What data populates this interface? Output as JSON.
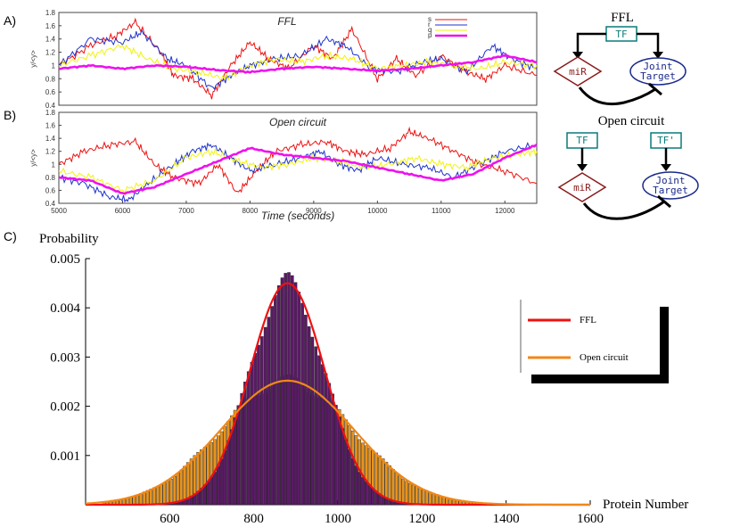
{
  "panels": {
    "a": "A)",
    "b": "B)",
    "c": "C)"
  },
  "chart_data": [
    {
      "type": "line",
      "panel_title": "FFL",
      "ylabel": "y/<y>",
      "xlim": [
        5000,
        12500
      ],
      "ylim": [
        0.4,
        1.8
      ],
      "yticks": [
        "0.4",
        "0.6",
        "0.8",
        "1",
        "1.2",
        "1.4",
        "1.6",
        "1.8"
      ],
      "legend": [
        "s",
        "r",
        "q",
        "p"
      ],
      "series": [
        {
          "color": "#ee1111",
          "x": [
            5000,
            5500,
            5900,
            6200,
            6600,
            6800,
            7100,
            7400,
            7700,
            8000,
            8300,
            8600,
            9000,
            9300,
            9600,
            10000,
            10300,
            10600,
            11000,
            11400,
            11700,
            12000,
            12500
          ],
          "y": [
            1.0,
            1.3,
            1.45,
            1.65,
            1.2,
            0.85,
            0.8,
            0.55,
            1.0,
            1.35,
            1.1,
            0.95,
            1.3,
            1.1,
            1.55,
            0.8,
            1.1,
            0.85,
            1.15,
            0.9,
            0.8,
            1.0,
            0.85
          ]
        },
        {
          "color": "#1f33cc",
          "x": [
            5000,
            5500,
            6000,
            6300,
            6700,
            7000,
            7400,
            7700,
            8000,
            8400,
            8800,
            9200,
            9500,
            9900,
            10300,
            10700,
            11000,
            11400,
            11800,
            12100,
            12500
          ],
          "y": [
            1.0,
            1.4,
            1.35,
            1.5,
            1.1,
            1.0,
            0.65,
            0.85,
            1.0,
            1.1,
            1.15,
            1.4,
            1.3,
            0.95,
            0.9,
            1.05,
            1.1,
            0.9,
            1.3,
            1.1,
            0.95
          ]
        },
        {
          "color": "#f2f20d",
          "x": [
            5000,
            5500,
            6000,
            6400,
            6800,
            7200,
            7600,
            8000,
            8400,
            8800,
            9200,
            9600,
            10000,
            10400,
            10800,
            11200,
            11600,
            12000,
            12500
          ],
          "y": [
            1.0,
            1.15,
            1.3,
            1.1,
            0.95,
            0.9,
            0.8,
            1.0,
            1.1,
            1.05,
            1.15,
            1.1,
            0.95,
            1.0,
            1.05,
            1.0,
            0.95,
            1.05,
            1.0
          ]
        },
        {
          "color": "#ee11ee",
          "x": [
            5000,
            5500,
            6000,
            6500,
            7000,
            7500,
            8000,
            8500,
            9000,
            9500,
            10000,
            10500,
            11000,
            11500,
            12000,
            12500
          ],
          "y": [
            0.95,
            1.0,
            0.95,
            1.0,
            0.98,
            0.93,
            0.9,
            0.95,
            0.98,
            0.95,
            0.92,
            0.95,
            1.0,
            1.05,
            1.15,
            1.05
          ]
        }
      ]
    },
    {
      "type": "line",
      "panel_title": "Open circuit",
      "xlabel": "Time (seconds)",
      "ylabel": "y/<y>",
      "xlim": [
        5000,
        12500
      ],
      "ylim": [
        0.4,
        1.8
      ],
      "xticks": [
        "5000",
        "6000",
        "7000",
        "8000",
        "9000",
        "10000",
        "11000",
        "12000"
      ],
      "yticks": [
        "0.4",
        "0.6",
        "0.8",
        "1",
        "1.2",
        "1.4",
        "1.6",
        "1.8"
      ],
      "series": [
        {
          "color": "#ee1111",
          "x": [
            5000,
            5400,
            5800,
            6200,
            6500,
            6800,
            7200,
            7500,
            7800,
            8100,
            8400,
            8800,
            9200,
            9500,
            9800,
            10200,
            10500,
            10800,
            11200,
            11600,
            12000,
            12500
          ],
          "y": [
            1.0,
            1.2,
            1.3,
            1.35,
            1.0,
            0.8,
            0.7,
            1.0,
            0.55,
            0.9,
            1.2,
            1.3,
            1.35,
            1.2,
            1.15,
            1.25,
            1.5,
            1.4,
            1.2,
            1.0,
            0.9,
            0.7
          ]
        },
        {
          "color": "#1f33cc",
          "x": [
            5000,
            5400,
            5800,
            6100,
            6400,
            6800,
            7100,
            7400,
            7700,
            8000,
            8400,
            8800,
            9100,
            9400,
            9700,
            10000,
            10400,
            10800,
            11200,
            11600,
            12000,
            12500
          ],
          "y": [
            0.8,
            0.7,
            0.5,
            0.45,
            0.7,
            1.0,
            1.2,
            1.3,
            1.1,
            0.9,
            1.0,
            1.1,
            1.2,
            1.0,
            0.9,
            1.1,
            1.0,
            0.95,
            0.8,
            1.0,
            1.2,
            1.3
          ]
        },
        {
          "color": "#f2f20d",
          "x": [
            5000,
            5500,
            6000,
            6500,
            7000,
            7400,
            7800,
            8200,
            8600,
            9000,
            9400,
            9800,
            10200,
            10600,
            11000,
            11400,
            11800,
            12200,
            12500
          ],
          "y": [
            0.9,
            0.8,
            0.6,
            0.75,
            1.1,
            1.2,
            1.05,
            0.95,
            1.0,
            1.1,
            1.05,
            0.95,
            1.0,
            1.1,
            1.0,
            0.95,
            1.1,
            1.15,
            1.2
          ]
        },
        {
          "color": "#ee11ee",
          "x": [
            5000,
            5500,
            6000,
            6500,
            7000,
            7500,
            8000,
            8500,
            9000,
            9500,
            10000,
            10500,
            11000,
            11500,
            12000,
            12500
          ],
          "y": [
            0.8,
            0.75,
            0.55,
            0.65,
            0.85,
            1.05,
            1.25,
            1.15,
            1.1,
            1.05,
            0.95,
            0.85,
            0.75,
            0.85,
            1.1,
            1.3
          ]
        }
      ]
    },
    {
      "type": "bar",
      "ylabel": "Probability",
      "xlabel": "Protein Number",
      "xlim": [
        400,
        1600
      ],
      "ylim": [
        0,
        0.005
      ],
      "xticks": [
        "600",
        "800",
        "1000",
        "1200",
        "1400",
        "1600"
      ],
      "yticks": [
        "0.001",
        "0.002",
        "0.003",
        "0.004",
        "0.005"
      ],
      "legend": [
        "FFL",
        "Open circuit"
      ],
      "series": [
        {
          "name": "FFL",
          "color": "#ee1111",
          "hist_color": "#5a1a66",
          "mean": 880,
          "sd": 89,
          "peak": 0.0045
        },
        {
          "name": "Open circuit",
          "color": "#f08818",
          "hist_color": "#e69420",
          "mean": 880,
          "sd": 158,
          "peak": 0.00252
        }
      ]
    }
  ],
  "diagram_ffl": {
    "title": "FFL",
    "tf": "TF",
    "mir": "miR",
    "target_l1": "Joint",
    "target_l2": "Target"
  },
  "diagram_open": {
    "title": "Open circuit",
    "tf": "TF",
    "tf2": "TF'",
    "mir": "miR",
    "target_l1": "Joint",
    "target_l2": "Target"
  }
}
